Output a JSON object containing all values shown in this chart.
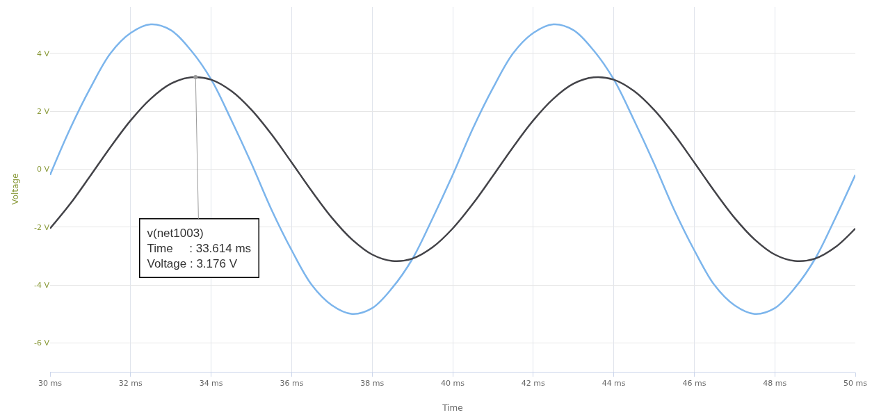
{
  "chart_data": {
    "type": "line",
    "xlabel": "Time",
    "ylabel": "Voltage",
    "x": [
      30,
      30.5,
      31,
      31.5,
      32,
      32.5,
      33,
      33.5,
      34,
      34.5,
      35,
      35.5,
      36,
      36.5,
      37,
      37.5,
      38,
      38.5,
      39,
      39.5,
      40,
      40.5,
      41,
      41.5,
      42,
      42.5,
      43,
      43.5,
      44,
      44.5,
      45,
      45.5,
      46,
      46.5,
      47,
      47.5,
      48,
      48.5,
      49,
      49.5,
      50
    ],
    "series": [
      {
        "color": "#7cb5ec",
        "values": [
          -0.2,
          1.4,
          2.8,
          4.0,
          4.7,
          5.0,
          4.8,
          4.1,
          3.1,
          1.7,
          0.2,
          -1.4,
          -2.8,
          -4.0,
          -4.7,
          -5.0,
          -4.8,
          -4.1,
          -3.1,
          -1.7,
          -0.2,
          1.4,
          2.8,
          4.0,
          4.7,
          5.0,
          4.8,
          4.1,
          3.1,
          1.7,
          0.2,
          -1.4,
          -2.8,
          -4.0,
          -4.7,
          -5.0,
          -4.8,
          -4.1,
          -3.1,
          -1.7,
          -0.2
        ]
      },
      {
        "color": "#434348",
        "values": [
          -2.05,
          -1.2,
          -0.23,
          0.76,
          1.68,
          2.43,
          2.95,
          3.17,
          3.09,
          2.7,
          2.05,
          1.2,
          0.23,
          -0.76,
          -1.68,
          -2.43,
          -2.95,
          -3.17,
          -3.09,
          -2.7,
          -2.05,
          -1.2,
          -0.23,
          0.76,
          1.68,
          2.43,
          2.95,
          3.17,
          3.09,
          2.7,
          2.05,
          1.2,
          0.23,
          -0.76,
          -1.68,
          -2.43,
          -2.95,
          -3.17,
          -3.09,
          -2.7,
          -2.05
        ]
      }
    ],
    "xlim": [
      30,
      50
    ],
    "xticks": [
      {
        "value": 30,
        "label": "30 ms"
      },
      {
        "value": 32,
        "label": "32 ms"
      },
      {
        "value": 34,
        "label": "34 ms"
      },
      {
        "value": 36,
        "label": "36 ms"
      },
      {
        "value": 38,
        "label": "38 ms"
      },
      {
        "value": 40,
        "label": "40 ms"
      },
      {
        "value": 42,
        "label": "42 ms"
      },
      {
        "value": 44,
        "label": "44 ms"
      },
      {
        "value": 46,
        "label": "46 ms"
      },
      {
        "value": 48,
        "label": "48 ms"
      },
      {
        "value": 50,
        "label": "50 ms"
      }
    ],
    "ylim": [
      -7,
      5.6
    ],
    "yticks": [
      {
        "value": -6,
        "label": "-6 V"
      },
      {
        "value": -4,
        "label": "-4 V"
      },
      {
        "value": -2,
        "label": "-2 V"
      },
      {
        "value": 0,
        "label": "0 V"
      },
      {
        "value": 2,
        "label": "2 V"
      },
      {
        "value": 4,
        "label": "4 V"
      }
    ],
    "grid": true,
    "marker": "none",
    "line_style": "solid",
    "annotations": [
      {
        "text": "v(net1003)\nTime     : 33.614 ms\nVoltage : 3.176 V",
        "x": 33.614,
        "y": 3.176
      }
    ]
  }
}
